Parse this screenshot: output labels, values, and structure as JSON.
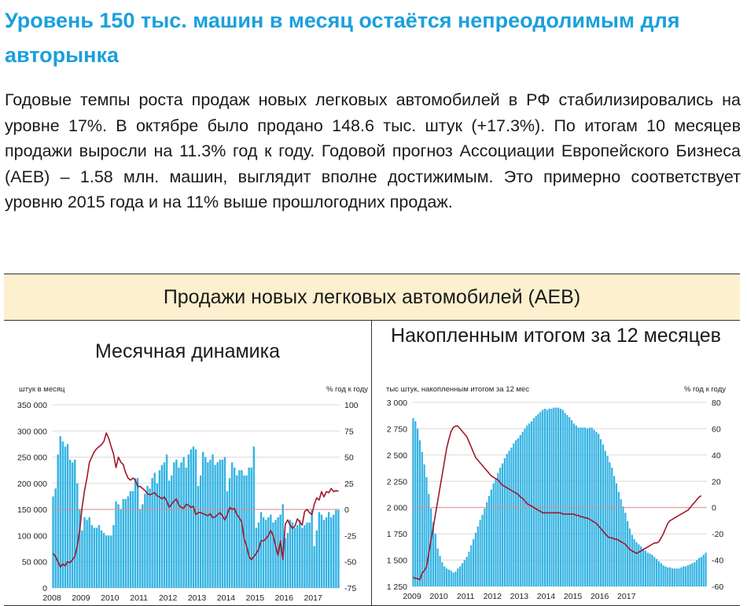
{
  "title": "Уровень 150 тыс. машин в месяц остаётся непреодолимым для авторынка",
  "paragraph": "Годовые темпы роста продаж новых легковых автомобилей в РФ стабилизировались на уровне 17%. В октябре было продано 148.6 тыс. штук (+17.3%). По итогам 10 месяцев продажи выросли на 11.3% год к году. Годовой прогноз Ассоциации Европейского Бизнеса (AEB) – 1.58 млн. машин, выглядит вполне достижимым. Это примерно соответствует уровню 2015 года и на 11% выше прошлогодних продаж.",
  "table": {
    "header": "Продажи новых легковых автомобилей (AEB)",
    "left_title": "Месячная динамика",
    "right_title": "Накопленным итогом за 12 месяцев"
  },
  "colors": {
    "bar": "#33b3e3",
    "line": "#a0182a",
    "zero_line": "#e88a8a",
    "title": "#1aa0dc",
    "header_bg": "#fdf0cf"
  },
  "chart_data": [
    {
      "type": "bar",
      "left_axis_label": "штук в месяц",
      "right_axis_label": "% год к году",
      "y_left": {
        "min": 0,
        "max": 350000,
        "ticks": [
          "0",
          "50 000",
          "100 000",
          "150 000",
          "200 000",
          "250 000",
          "300 000",
          "350 000"
        ]
      },
      "y_right": {
        "min": -75,
        "max": 100,
        "ticks": [
          "-75",
          "-50",
          "-25",
          "0",
          "25",
          "50",
          "75",
          "100"
        ]
      },
      "x_labels": [
        "2008",
        "2009",
        "2010",
        "2011",
        "2012",
        "2013",
        "2014",
        "2015",
        "2016",
        "2017"
      ],
      "start": "2008-01",
      "bars": [
        175000,
        190000,
        255000,
        290000,
        280000,
        270000,
        275000,
        245000,
        240000,
        245000,
        200000,
        150000,
        110000,
        135000,
        130000,
        135000,
        120000,
        115000,
        115000,
        120000,
        110000,
        105000,
        100000,
        100000,
        100000,
        120000,
        165000,
        160000,
        150000,
        170000,
        170000,
        175000,
        185000,
        185000,
        210000,
        210000,
        150000,
        160000,
        180000,
        195000,
        190000,
        210000,
        220000,
        200000,
        225000,
        235000,
        240000,
        255000,
        205000,
        215000,
        240000,
        245000,
        230000,
        240000,
        250000,
        230000,
        255000,
        265000,
        270000,
        265000,
        195000,
        215000,
        260000,
        250000,
        240000,
        245000,
        255000,
        235000,
        240000,
        245000,
        245000,
        250000,
        185000,
        210000,
        240000,
        230000,
        215000,
        225000,
        225000,
        215000,
        215000,
        230000,
        230000,
        270000,
        115000,
        125000,
        145000,
        135000,
        130000,
        135000,
        140000,
        125000,
        130000,
        135000,
        140000,
        160000,
        95000,
        105000,
        130000,
        125000,
        115000,
        120000,
        130000,
        115000,
        120000,
        125000,
        125000,
        150000,
        80000,
        110000,
        145000,
        140000,
        130000,
        135000,
        145000,
        135000,
        140000,
        150000,
        148600
      ],
      "yoy": [
        -42,
        -45,
        -50,
        -55,
        -52,
        -54,
        -50,
        -51,
        -48,
        -45,
        -35,
        -20,
        2,
        18,
        30,
        45,
        50,
        55,
        58,
        60,
        62,
        65,
        73,
        68,
        60,
        53,
        40,
        50,
        45,
        43,
        35,
        30,
        28,
        30,
        28,
        22,
        22,
        20,
        18,
        15,
        14,
        15,
        16,
        13,
        12,
        10,
        12,
        8,
        2,
        5,
        8,
        10,
        4,
        2,
        1,
        5,
        4,
        2,
        3,
        -5,
        -3,
        -3,
        -4,
        -5,
        -6,
        -4,
        -8,
        -7,
        -5,
        -3,
        -6,
        -10,
        -5,
        2,
        0,
        1,
        -5,
        -8,
        -12,
        -28,
        -35,
        -45,
        -48,
        -45,
        -42,
        -38,
        -30,
        -30,
        -28,
        -25,
        -20,
        -25,
        -35,
        -44,
        -30,
        -48,
        -14,
        -10,
        -15,
        -18,
        -16,
        -9,
        -12,
        -15,
        -2,
        0,
        -3,
        -5,
        5,
        11,
        9,
        17,
        12,
        17,
        16,
        20,
        17,
        18,
        17.3
      ]
    },
    {
      "type": "area",
      "left_axis_label": "тыс штук, накопленным итогом за 12 мес",
      "right_axis_label": "% год к году",
      "y_left": {
        "min": 1250,
        "max": 3000,
        "ticks": [
          "1 250",
          "1 500",
          "1 750",
          "2 000",
          "2 250",
          "2 500",
          "2 750",
          "3 000"
        ]
      },
      "y_right": {
        "min": -60,
        "max": 80,
        "ticks": [
          "-60",
          "-40",
          "-20",
          "0",
          "20",
          "40",
          "60",
          "80"
        ]
      },
      "x_labels": [
        "2009",
        "2010",
        "2011",
        "2012",
        "2013",
        "2014",
        "2015",
        "2016",
        "2017"
      ],
      "start": "2009-01",
      "bars": [
        2850,
        2820,
        2750,
        2640,
        2530,
        2410,
        2290,
        2130,
        1990,
        1860,
        1750,
        1610,
        1540,
        1480,
        1440,
        1420,
        1410,
        1400,
        1380,
        1390,
        1420,
        1440,
        1470,
        1500,
        1530,
        1580,
        1640,
        1700,
        1760,
        1820,
        1880,
        1930,
        1990,
        2050,
        2110,
        2170,
        2230,
        2280,
        2330,
        2380,
        2420,
        2470,
        2510,
        2540,
        2570,
        2610,
        2640,
        2660,
        2690,
        2720,
        2750,
        2780,
        2800,
        2820,
        2850,
        2870,
        2890,
        2910,
        2930,
        2940,
        2930,
        2940,
        2940,
        2950,
        2950,
        2950,
        2940,
        2930,
        2900,
        2880,
        2860,
        2830,
        2800,
        2780,
        2760,
        2760,
        2760,
        2760,
        2750,
        2760,
        2760,
        2740,
        2720,
        2700,
        2650,
        2600,
        2540,
        2490,
        2430,
        2380,
        2300,
        2230,
        2150,
        2080,
        2010,
        1950,
        1870,
        1800,
        1740,
        1700,
        1670,
        1650,
        1630,
        1610,
        1590,
        1570,
        1560,
        1550,
        1530,
        1510,
        1490,
        1470,
        1450,
        1440,
        1430,
        1430,
        1420,
        1420,
        1420,
        1420,
        1430,
        1440,
        1440,
        1450,
        1460,
        1470,
        1480,
        1500,
        1520,
        1530,
        1550,
        1570
      ],
      "yoy": [
        -53,
        -54,
        -54,
        -55,
        -50,
        -48,
        -45,
        -35,
        -25,
        -15,
        -5,
        5,
        15,
        25,
        35,
        45,
        52,
        58,
        61,
        62,
        62,
        60,
        58,
        56,
        54,
        50,
        46,
        42,
        38,
        36,
        34,
        32,
        30,
        28,
        26,
        24,
        23,
        22,
        21,
        19,
        17,
        16,
        15,
        14,
        13,
        12,
        11,
        10,
        8,
        7,
        5,
        3,
        2,
        1,
        0,
        -1,
        -2,
        -3,
        -4,
        -4,
        -4,
        -4,
        -4,
        -4,
        -4,
        -4,
        -4,
        -5,
        -5,
        -5,
        -5,
        -5,
        -5,
        -6,
        -6,
        -7,
        -7,
        -8,
        -8,
        -9,
        -10,
        -11,
        -12,
        -14,
        -16,
        -18,
        -20,
        -22,
        -23,
        -23,
        -24,
        -24,
        -25,
        -26,
        -27,
        -28,
        -30,
        -32,
        -33,
        -34,
        -35,
        -34,
        -33,
        -32,
        -31,
        -30,
        -29,
        -28,
        -27,
        -27,
        -26,
        -23,
        -20,
        -16,
        -12,
        -10,
        -9,
        -8,
        -7,
        -6,
        -5,
        -4,
        -3,
        -2,
        0,
        2,
        4,
        6,
        8,
        9
      ]
    }
  ]
}
